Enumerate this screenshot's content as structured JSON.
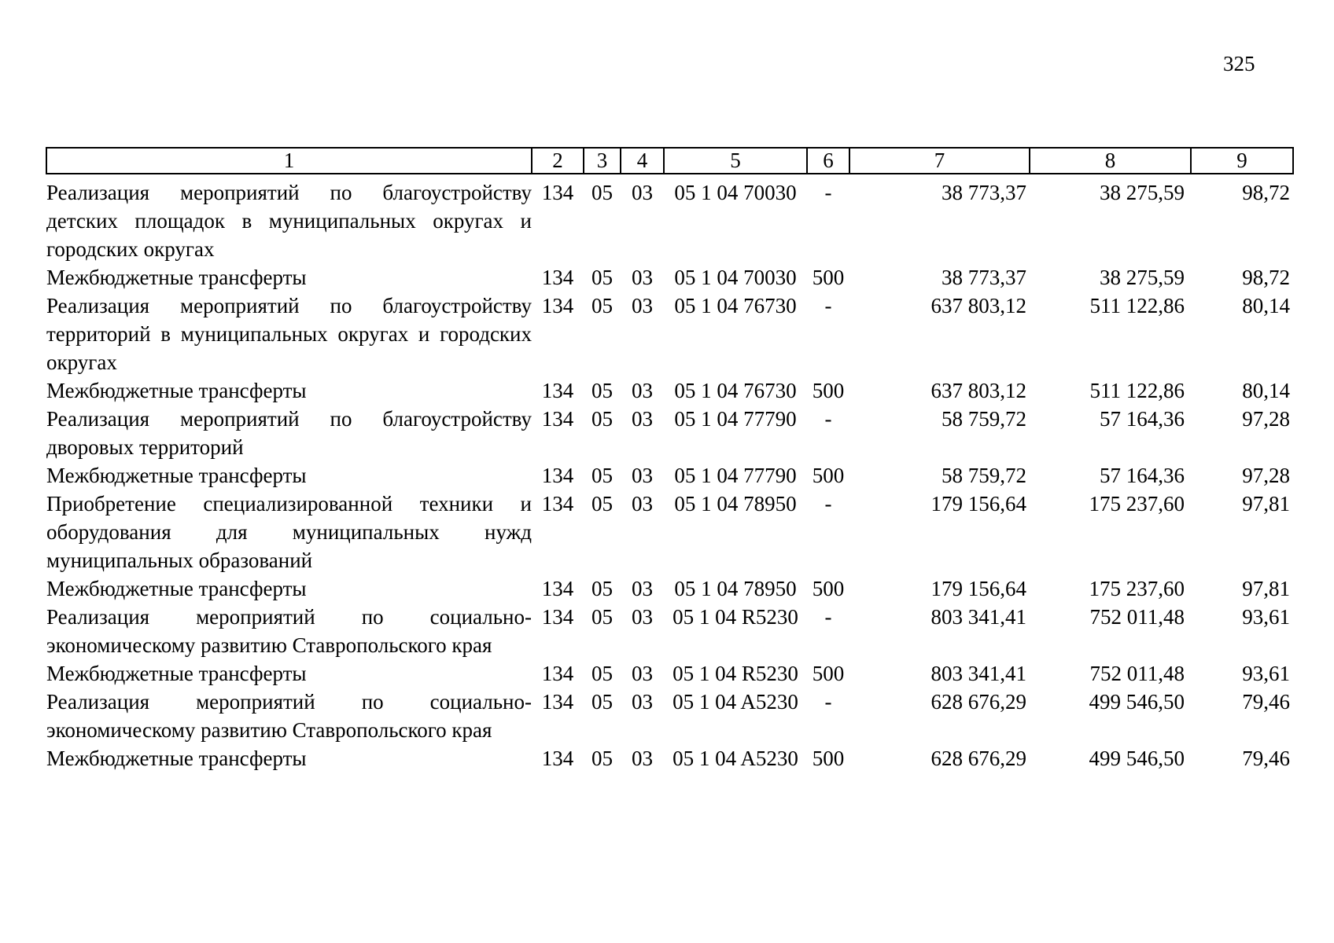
{
  "page": {
    "number": "325"
  },
  "table": {
    "col_numbers": [
      "1",
      "2",
      "3",
      "4",
      "5",
      "6",
      "7",
      "8",
      "9"
    ],
    "rows": [
      {
        "name_lines": [
          "Реализация мероприятий по благоустройству",
          "детских площадок в муниципальных округах и",
          "городских округах"
        ],
        "c2": "134",
        "c3": "05",
        "c4": "03",
        "c5": "05 1 04 70030",
        "c6": "-",
        "c7": "38 773,37",
        "c8": "38 275,59",
        "c9": "98,72"
      },
      {
        "name_lines": [
          "Межбюджетные трансферты"
        ],
        "c2": "134",
        "c3": "05",
        "c4": "03",
        "c5": "05 1 04 70030",
        "c6": "500",
        "c7": "38 773,37",
        "c8": "38 275,59",
        "c9": "98,72"
      },
      {
        "name_lines": [
          "Реализация мероприятий по благоустройству",
          "территорий в муниципальных округах и городских",
          "округах"
        ],
        "c2": "134",
        "c3": "05",
        "c4": "03",
        "c5": "05 1 04 76730",
        "c6": "-",
        "c7": "637 803,12",
        "c8": "511 122,86",
        "c9": "80,14"
      },
      {
        "name_lines": [
          "Межбюджетные трансферты"
        ],
        "c2": "134",
        "c3": "05",
        "c4": "03",
        "c5": "05 1 04 76730",
        "c6": "500",
        "c7": "637 803,12",
        "c8": "511 122,86",
        "c9": "80,14"
      },
      {
        "name_lines": [
          "Реализация мероприятий по благоустройству",
          "дворовых территорий"
        ],
        "c2": "134",
        "c3": "05",
        "c4": "03",
        "c5": "05 1 04 77790",
        "c6": "-",
        "c7": "58 759,72",
        "c8": "57 164,36",
        "c9": "97,28"
      },
      {
        "name_lines": [
          "Межбюджетные трансферты"
        ],
        "c2": "134",
        "c3": "05",
        "c4": "03",
        "c5": "05 1 04 77790",
        "c6": "500",
        "c7": "58 759,72",
        "c8": "57 164,36",
        "c9": "97,28"
      },
      {
        "name_lines": [
          "Приобретение специализированной техники и",
          "оборудования для муниципальных нужд",
          "муниципальных образований"
        ],
        "c2": "134",
        "c3": "05",
        "c4": "03",
        "c5": "05 1 04 78950",
        "c6": "-",
        "c7": "179 156,64",
        "c8": "175 237,60",
        "c9": "97,81"
      },
      {
        "name_lines": [
          "Межбюджетные трансферты"
        ],
        "c2": "134",
        "c3": "05",
        "c4": "03",
        "c5": "05 1 04 78950",
        "c6": "500",
        "c7": "179 156,64",
        "c8": "175 237,60",
        "c9": "97,81"
      },
      {
        "name_lines": [
          "Реализация мероприятий по социально-",
          "экономическому развитию Ставропольского края"
        ],
        "c2": "134",
        "c3": "05",
        "c4": "03",
        "c5": "05 1 04 R5230",
        "c6": "-",
        "c7": "803 341,41",
        "c8": "752 011,48",
        "c9": "93,61"
      },
      {
        "name_lines": [
          "Межбюджетные трансферты"
        ],
        "c2": "134",
        "c3": "05",
        "c4": "03",
        "c5": "05 1 04 R5230",
        "c6": "500",
        "c7": "803 341,41",
        "c8": "752 011,48",
        "c9": "93,61"
      },
      {
        "name_lines": [
          "Реализация мероприятий по социально-",
          "экономическому развитию Ставропольского края"
        ],
        "c2": "134",
        "c3": "05",
        "c4": "03",
        "c5": "05 1 04 A5230",
        "c6": "-",
        "c7": "628 676,29",
        "c8": "499 546,50",
        "c9": "79,46"
      },
      {
        "name_lines": [
          "Межбюджетные трансферты"
        ],
        "c2": "134",
        "c3": "05",
        "c4": "03",
        "c5": "05 1 04 A5230",
        "c6": "500",
        "c7": "628 676,29",
        "c8": "499 546,50",
        "c9": "79,46"
      }
    ]
  }
}
